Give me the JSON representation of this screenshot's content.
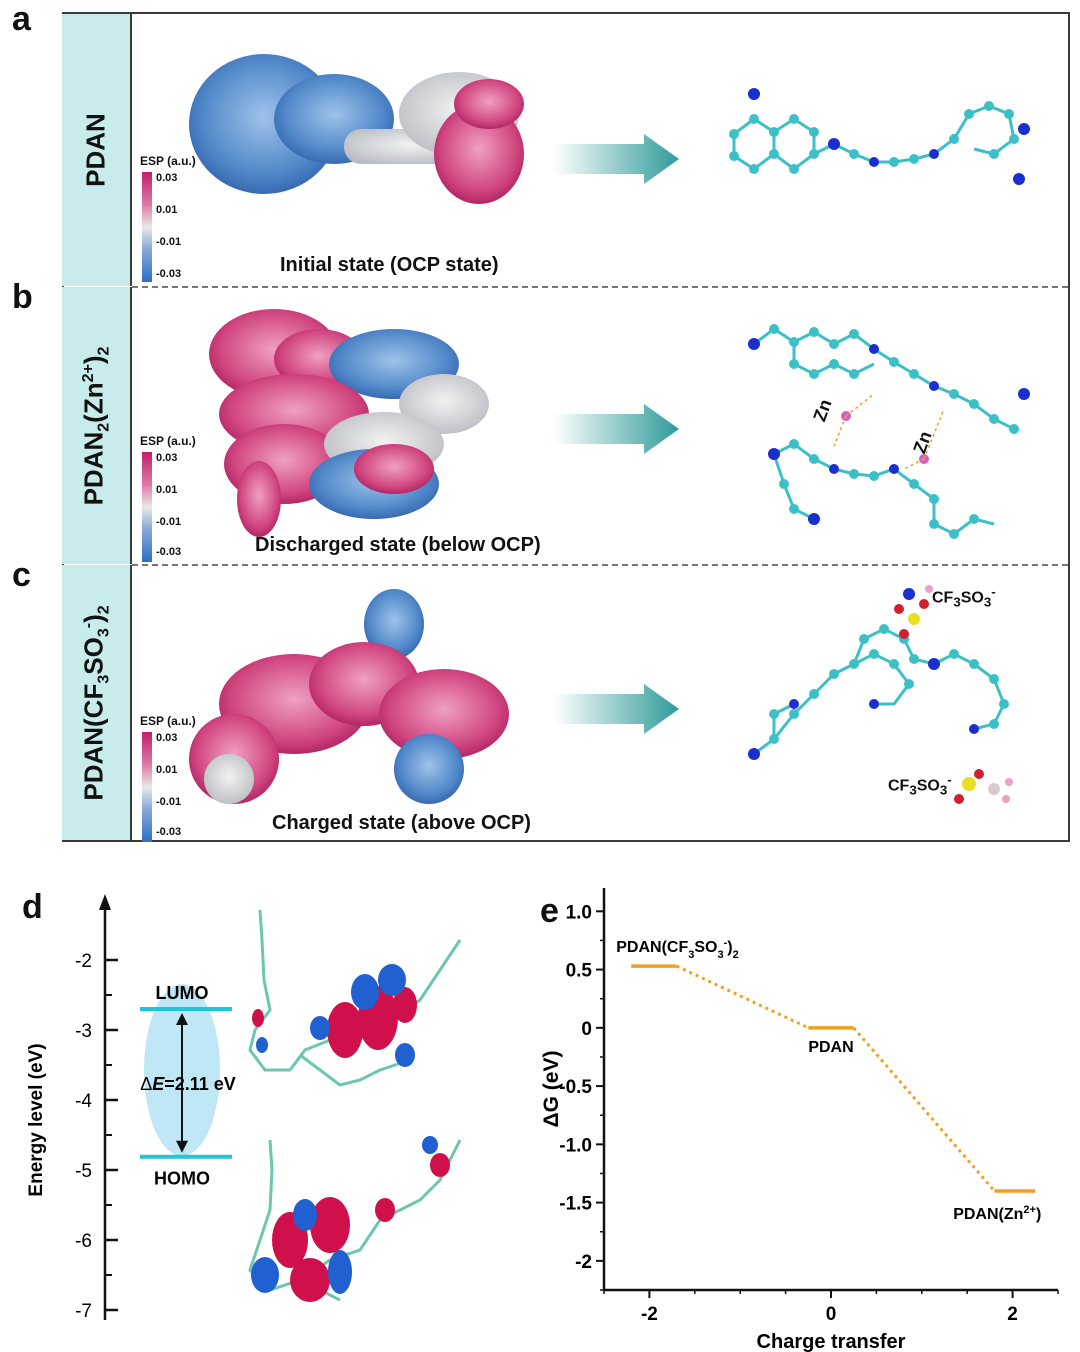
{
  "panels": {
    "a": {
      "letter": "a",
      "side_label": "PDAN",
      "caption": "Initial state (OCP state)"
    },
    "b": {
      "letter": "b",
      "side_label_parts": [
        "PDAN",
        "2",
        "(Zn",
        "2+",
        ")",
        "2"
      ],
      "caption": "Discharged state (below OCP)",
      "zn_labels": [
        "Zn",
        "Zn"
      ]
    },
    "c": {
      "letter": "c",
      "side_label_parts": [
        "PDAN(CF",
        "3",
        "SO",
        "3",
        "-",
        ")",
        "2"
      ],
      "caption": "Charged state (above OCP)",
      "anion_label_parts": [
        "CF",
        "3",
        "SO",
        "3",
        "-"
      ]
    },
    "d": {
      "letter": "d"
    },
    "e": {
      "letter": "e"
    }
  },
  "esp_scale": {
    "title": "ESP (a.u.)",
    "ticks": [
      "0.03",
      "0.01",
      "-0.01",
      "-0.03"
    ]
  },
  "colors": {
    "arrow": "#3aa6a6",
    "carbon": "#3cc0c8",
    "nitrogen": "#1a2fd0",
    "hydrogen": "#e8e8e8",
    "positive": "#c0206a",
    "negative": "#2f6fc8",
    "orbital_line": "#22c4d8",
    "dg_line": "#f0a020"
  },
  "chart_data": [
    {
      "type": "line",
      "title": "",
      "ylabel": "Energy level (eV)",
      "yticks": [
        "-2",
        "-3",
        "-4",
        "-5",
        "-6",
        "-7"
      ],
      "ylim": [
        -7,
        -1.5
      ],
      "levels": [
        {
          "name": "LUMO",
          "value": -2.7
        },
        {
          "name": "HOMO",
          "value": -4.81
        }
      ],
      "gap_label_parts": [
        "Δ",
        "E",
        "=2.11 eV"
      ]
    },
    {
      "type": "line",
      "title": "",
      "xlabel": "Charge transfer",
      "ylabel": "ΔG (eV)",
      "xlim": [
        -2.5,
        2.5
      ],
      "ylim": [
        -2.25,
        1.2
      ],
      "xticks": [
        "-2",
        "0",
        "2"
      ],
      "yticks": [
        "1.0",
        "0.5",
        "0",
        "-0.5",
        "-1.0",
        "-1.5",
        "-2"
      ],
      "levels": [
        {
          "name_parts": [
            "PDAN(CF",
            "3",
            "SO",
            "3",
            "-",
            ")",
            "2"
          ],
          "x": [
            -2.2,
            -1.7
          ],
          "y": 0.53
        },
        {
          "name_parts": [
            "PDAN"
          ],
          "x": [
            -0.25,
            0.25
          ],
          "y": 0
        },
        {
          "name_parts": [
            "PDAN(Zn",
            "2+",
            ")"
          ],
          "x": [
            1.8,
            2.25
          ],
          "y": -1.4
        }
      ]
    }
  ]
}
